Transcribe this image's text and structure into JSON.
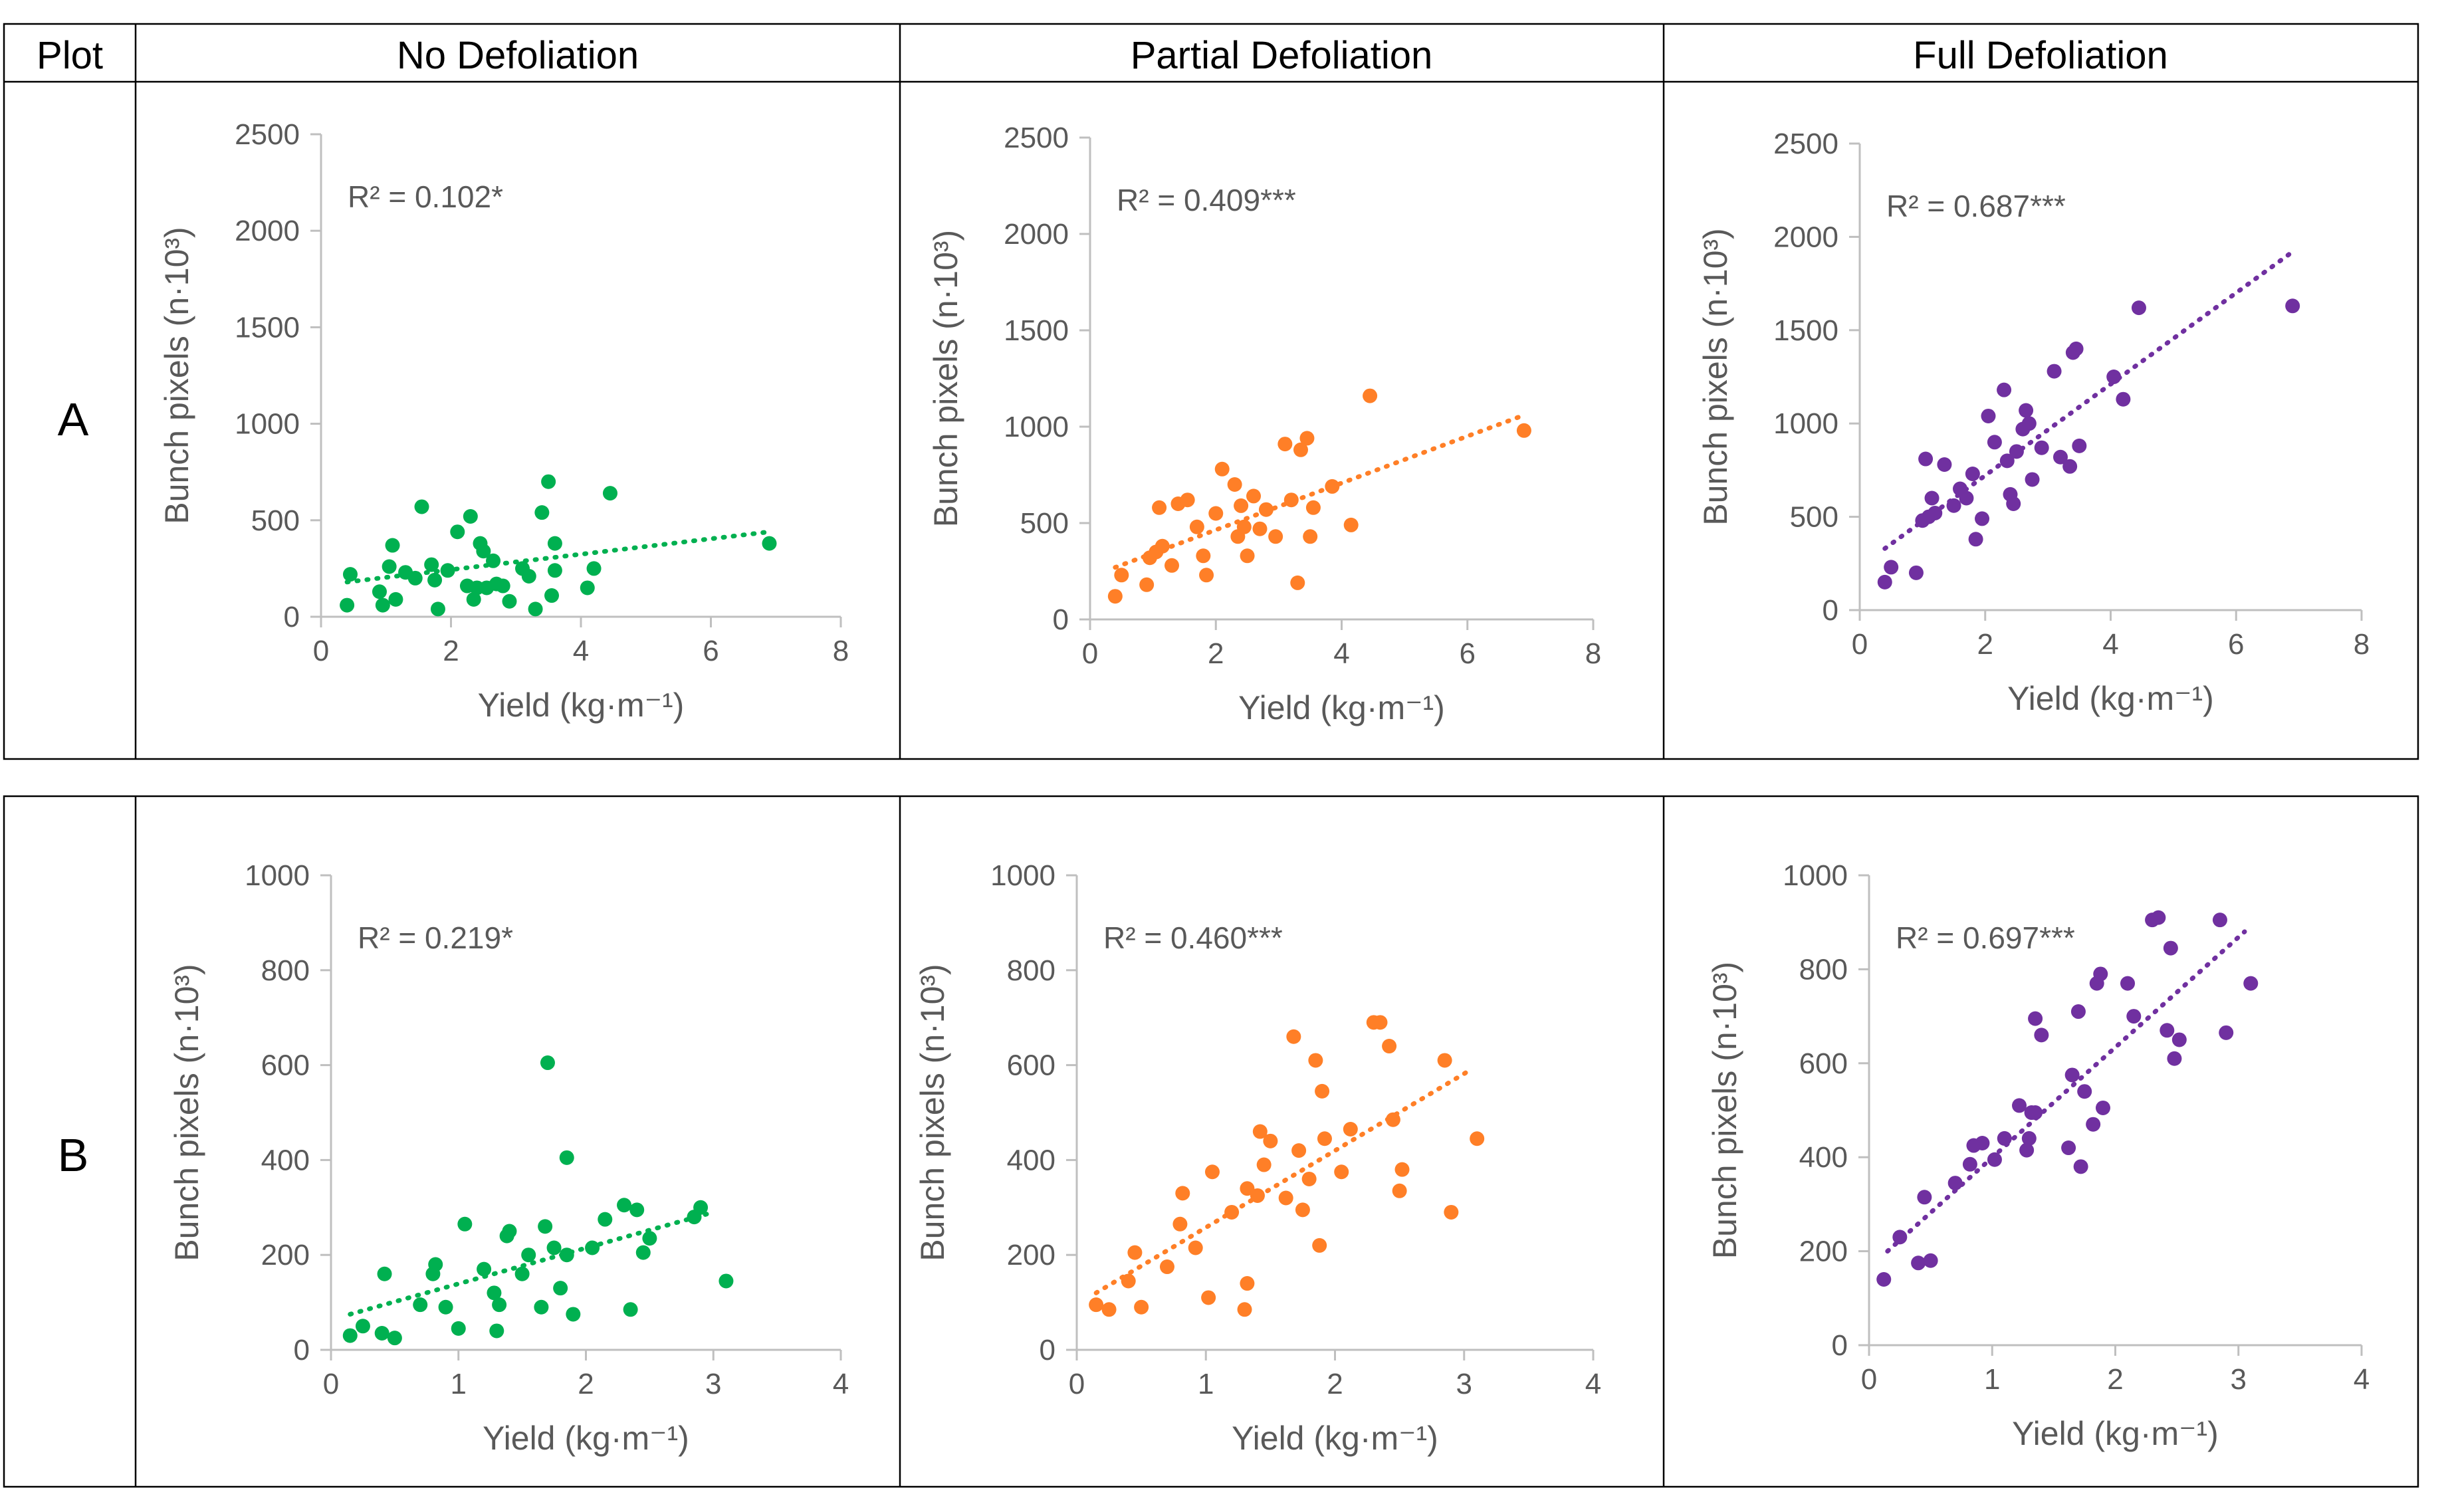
{
  "table": {
    "plot_header": "Plot",
    "columns": [
      "No Defoliation",
      "Partial Defoliation",
      "Full Defoliation"
    ],
    "rows": [
      "A",
      "B"
    ]
  },
  "colors": {
    "no_defoliation": "#00b050",
    "partial_defoliation": "#ff7f27",
    "full_defoliation": "#7030a0",
    "axis": "#bfbfbf",
    "text": "#595959"
  },
  "chart_data": [
    {
      "id": "A-none",
      "type": "scatter",
      "row": "A",
      "treatment": "No Defoliation",
      "xlabel": "Yield (kg·m⁻¹)",
      "ylabel": "Bunch pixels (n·10³)",
      "xlim": [
        0,
        8
      ],
      "ylim": [
        0,
        2500
      ],
      "xticks": [
        "0",
        "2",
        "4",
        "6",
        "8"
      ],
      "yticks": [
        "0",
        "500",
        "1000",
        "1500",
        "2000",
        "2500"
      ],
      "r2_label": "R² = 0.102*",
      "color": "#00b050",
      "trend": [
        [
          0.4,
          180
        ],
        [
          6.9,
          440
        ]
      ],
      "points": [
        [
          0.4,
          60
        ],
        [
          0.45,
          220
        ],
        [
          0.9,
          130
        ],
        [
          0.95,
          60
        ],
        [
          1.05,
          260
        ],
        [
          1.1,
          370
        ],
        [
          1.15,
          90
        ],
        [
          1.3,
          230
        ],
        [
          1.45,
          200
        ],
        [
          1.55,
          570
        ],
        [
          1.7,
          270
        ],
        [
          1.75,
          190
        ],
        [
          1.8,
          40
        ],
        [
          1.95,
          240
        ],
        [
          2.1,
          440
        ],
        [
          2.25,
          160
        ],
        [
          2.3,
          520
        ],
        [
          2.35,
          90
        ],
        [
          2.4,
          150
        ],
        [
          2.45,
          380
        ],
        [
          2.5,
          340
        ],
        [
          2.55,
          150
        ],
        [
          2.65,
          290
        ],
        [
          2.7,
          170
        ],
        [
          2.8,
          160
        ],
        [
          2.9,
          80
        ],
        [
          3.1,
          250
        ],
        [
          3.2,
          210
        ],
        [
          3.3,
          40
        ],
        [
          3.4,
          540
        ],
        [
          3.5,
          700
        ],
        [
          3.55,
          110
        ],
        [
          3.6,
          380
        ],
        [
          3.6,
          240
        ],
        [
          4.1,
          150
        ],
        [
          4.2,
          250
        ],
        [
          4.45,
          640
        ],
        [
          6.9,
          380
        ]
      ]
    },
    {
      "id": "A-partial",
      "type": "scatter",
      "row": "A",
      "treatment": "Partial Defoliation",
      "xlabel": "Yield (kg·m⁻¹)",
      "ylabel": "Bunch pixels (n·10³)",
      "xlim": [
        0,
        8
      ],
      "ylim": [
        0,
        2500
      ],
      "xticks": [
        "0",
        "2",
        "4",
        "6",
        "8"
      ],
      "yticks": [
        "0",
        "500",
        "1000",
        "1500",
        "2000",
        "2500"
      ],
      "r2_label": "R² = 0.409***",
      "color": "#ff7f27",
      "trend": [
        [
          0.4,
          270
        ],
        [
          6.9,
          1060
        ]
      ],
      "points": [
        [
          0.4,
          120
        ],
        [
          0.5,
          230
        ],
        [
          0.9,
          180
        ],
        [
          0.95,
          320
        ],
        [
          1.05,
          350
        ],
        [
          1.1,
          580
        ],
        [
          1.15,
          380
        ],
        [
          1.3,
          280
        ],
        [
          1.4,
          600
        ],
        [
          1.55,
          620
        ],
        [
          1.7,
          480
        ],
        [
          1.8,
          330
        ],
        [
          1.85,
          230
        ],
        [
          2.0,
          550
        ],
        [
          2.1,
          780
        ],
        [
          2.3,
          700
        ],
        [
          2.35,
          430
        ],
        [
          2.4,
          590
        ],
        [
          2.45,
          480
        ],
        [
          2.5,
          330
        ],
        [
          2.6,
          640
        ],
        [
          2.7,
          470
        ],
        [
          2.8,
          570
        ],
        [
          2.95,
          430
        ],
        [
          3.1,
          910
        ],
        [
          3.2,
          620
        ],
        [
          3.3,
          190
        ],
        [
          3.35,
          880
        ],
        [
          3.45,
          940
        ],
        [
          3.5,
          430
        ],
        [
          3.55,
          580
        ],
        [
          3.85,
          690
        ],
        [
          4.15,
          490
        ],
        [
          4.45,
          1160
        ],
        [
          6.9,
          980
        ]
      ]
    },
    {
      "id": "A-full",
      "type": "scatter",
      "row": "A",
      "treatment": "Full Defoliation",
      "xlabel": "Yield (kg·m⁻¹)",
      "ylabel": "Bunch pixels (n·10³)",
      "xlim": [
        0,
        8
      ],
      "ylim": [
        0,
        2500
      ],
      "xticks": [
        "0",
        "2",
        "4",
        "6",
        "8"
      ],
      "yticks": [
        "0",
        "500",
        "1000",
        "1500",
        "2000",
        "2500"
      ],
      "r2_label": "R² = 0.687***",
      "color": "#7030a0",
      "trend": [
        [
          0.4,
          330
        ],
        [
          6.9,
          1920
        ]
      ],
      "points": [
        [
          0.4,
          150
        ],
        [
          0.5,
          230
        ],
        [
          0.9,
          200
        ],
        [
          1.0,
          480
        ],
        [
          1.05,
          810
        ],
        [
          1.1,
          500
        ],
        [
          1.15,
          600
        ],
        [
          1.2,
          520
        ],
        [
          1.35,
          780
        ],
        [
          1.5,
          560
        ],
        [
          1.6,
          650
        ],
        [
          1.7,
          600
        ],
        [
          1.8,
          730
        ],
        [
          1.85,
          380
        ],
        [
          1.95,
          490
        ],
        [
          2.05,
          1040
        ],
        [
          2.15,
          900
        ],
        [
          2.3,
          1180
        ],
        [
          2.35,
          800
        ],
        [
          2.4,
          620
        ],
        [
          2.45,
          570
        ],
        [
          2.5,
          850
        ],
        [
          2.6,
          970
        ],
        [
          2.65,
          1070
        ],
        [
          2.7,
          1000
        ],
        [
          2.75,
          700
        ],
        [
          2.9,
          870
        ],
        [
          3.1,
          1280
        ],
        [
          3.2,
          820
        ],
        [
          3.35,
          770
        ],
        [
          3.4,
          1380
        ],
        [
          3.45,
          1400
        ],
        [
          3.5,
          880
        ],
        [
          4.05,
          1250
        ],
        [
          4.2,
          1130
        ],
        [
          4.45,
          1620
        ],
        [
          6.9,
          1630
        ]
      ]
    },
    {
      "id": "B-none",
      "type": "scatter",
      "row": "B",
      "treatment": "No Defoliation",
      "xlabel": "Yield (kg·m⁻¹)",
      "ylabel": "Bunch pixels (n·10³)",
      "xlim": [
        0,
        4
      ],
      "ylim": [
        0,
        1000
      ],
      "xticks": [
        "0",
        "1",
        "2",
        "3",
        "4"
      ],
      "yticks": [
        "0",
        "200",
        "400",
        "600",
        "800",
        "1000"
      ],
      "r2_label": "R² = 0.219*",
      "color": "#00b050",
      "trend": [
        [
          0.15,
          75
        ],
        [
          3.0,
          290
        ]
      ],
      "points": [
        [
          0.15,
          30
        ],
        [
          0.25,
          50
        ],
        [
          0.4,
          35
        ],
        [
          0.42,
          160
        ],
        [
          0.5,
          25
        ],
        [
          0.7,
          95
        ],
        [
          0.8,
          160
        ],
        [
          0.82,
          180
        ],
        [
          0.9,
          90
        ],
        [
          1.0,
          45
        ],
        [
          1.05,
          265
        ],
        [
          1.2,
          170
        ],
        [
          1.28,
          120
        ],
        [
          1.3,
          40
        ],
        [
          1.32,
          95
        ],
        [
          1.38,
          240
        ],
        [
          1.4,
          250
        ],
        [
          1.5,
          160
        ],
        [
          1.55,
          200
        ],
        [
          1.65,
          90
        ],
        [
          1.68,
          260
        ],
        [
          1.7,
          605
        ],
        [
          1.75,
          215
        ],
        [
          1.8,
          130
        ],
        [
          1.85,
          405
        ],
        [
          1.85,
          200
        ],
        [
          1.9,
          75
        ],
        [
          2.05,
          215
        ],
        [
          2.15,
          275
        ],
        [
          2.3,
          305
        ],
        [
          2.35,
          85
        ],
        [
          2.4,
          295
        ],
        [
          2.45,
          205
        ],
        [
          2.5,
          235
        ],
        [
          2.85,
          280
        ],
        [
          2.9,
          300
        ],
        [
          3.1,
          145
        ]
      ]
    },
    {
      "id": "B-partial",
      "type": "scatter",
      "row": "B",
      "treatment": "Partial Defoliation",
      "xlabel": "Yield (kg·m⁻¹)",
      "ylabel": "Bunch pixels (n·10³)",
      "xlim": [
        0,
        4
      ],
      "ylim": [
        0,
        1000
      ],
      "xticks": [
        "0",
        "1",
        "2",
        "3",
        "4"
      ],
      "yticks": [
        "0",
        "200",
        "400",
        "600",
        "800",
        "1000"
      ],
      "r2_label": "R² = 0.460***",
      "color": "#ff7f27",
      "trend": [
        [
          0.15,
          120
        ],
        [
          3.05,
          590
        ]
      ],
      "points": [
        [
          0.15,
          95
        ],
        [
          0.25,
          85
        ],
        [
          0.4,
          145
        ],
        [
          0.45,
          205
        ],
        [
          0.5,
          90
        ],
        [
          0.7,
          175
        ],
        [
          0.8,
          265
        ],
        [
          0.82,
          330
        ],
        [
          0.92,
          215
        ],
        [
          1.02,
          110
        ],
        [
          1.05,
          375
        ],
        [
          1.2,
          290
        ],
        [
          1.3,
          85
        ],
        [
          1.32,
          140
        ],
        [
          1.32,
          340
        ],
        [
          1.4,
          325
        ],
        [
          1.42,
          460
        ],
        [
          1.45,
          390
        ],
        [
          1.5,
          440
        ],
        [
          1.62,
          320
        ],
        [
          1.68,
          660
        ],
        [
          1.72,
          420
        ],
        [
          1.75,
          295
        ],
        [
          1.8,
          360
        ],
        [
          1.85,
          610
        ],
        [
          1.88,
          220
        ],
        [
          1.9,
          545
        ],
        [
          1.92,
          445
        ],
        [
          2.05,
          375
        ],
        [
          2.12,
          465
        ],
        [
          2.3,
          690
        ],
        [
          2.35,
          690
        ],
        [
          2.42,
          640
        ],
        [
          2.45,
          485
        ],
        [
          2.5,
          335
        ],
        [
          2.52,
          380
        ],
        [
          2.85,
          610
        ],
        [
          2.9,
          290
        ],
        [
          3.1,
          445
        ]
      ]
    },
    {
      "id": "B-full",
      "type": "scatter",
      "row": "B",
      "treatment": "Full Defoliation",
      "xlabel": "Yield (kg·m⁻¹)",
      "ylabel": "Bunch pixels (n·10³)",
      "xlim": [
        0,
        4
      ],
      "ylim": [
        0,
        1000
      ],
      "xticks": [
        "0",
        "1",
        "2",
        "3",
        "4"
      ],
      "yticks": [
        "0",
        "200",
        "400",
        "600",
        "800",
        "1000"
      ],
      "r2_label": "R² = 0.697***",
      "color": "#7030a0",
      "trend": [
        [
          0.15,
          200
        ],
        [
          3.05,
          880
        ]
      ],
      "points": [
        [
          0.12,
          140
        ],
        [
          0.25,
          230
        ],
        [
          0.4,
          175
        ],
        [
          0.45,
          315
        ],
        [
          0.5,
          180
        ],
        [
          0.7,
          345
        ],
        [
          0.82,
          385
        ],
        [
          0.85,
          425
        ],
        [
          0.92,
          430
        ],
        [
          1.02,
          395
        ],
        [
          1.1,
          440
        ],
        [
          1.22,
          510
        ],
        [
          1.28,
          415
        ],
        [
          1.3,
          440
        ],
        [
          1.32,
          495
        ],
        [
          1.35,
          495
        ],
        [
          1.35,
          695
        ],
        [
          1.4,
          660
        ],
        [
          1.62,
          420
        ],
        [
          1.65,
          575
        ],
        [
          1.7,
          710
        ],
        [
          1.72,
          380
        ],
        [
          1.75,
          540
        ],
        [
          1.82,
          470
        ],
        [
          1.85,
          770
        ],
        [
          1.88,
          790
        ],
        [
          1.9,
          505
        ],
        [
          2.1,
          770
        ],
        [
          2.15,
          700
        ],
        [
          2.3,
          905
        ],
        [
          2.35,
          910
        ],
        [
          2.42,
          670
        ],
        [
          2.45,
          845
        ],
        [
          2.48,
          610
        ],
        [
          2.52,
          650
        ],
        [
          2.85,
          905
        ],
        [
          2.9,
          665
        ],
        [
          3.1,
          770
        ]
      ]
    }
  ]
}
